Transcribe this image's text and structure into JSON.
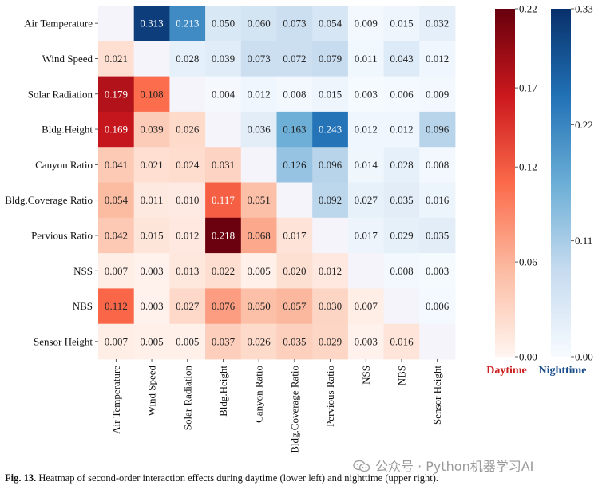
{
  "chart_data": {
    "type": "heatmap",
    "title": "",
    "row_labels": [
      "Air Temperature",
      "Wind Speed",
      "Solar Radiation",
      "Bldg.Height",
      "Canyon Ratio",
      "Bldg.Coverage Ratio",
      "Pervious Ratio",
      "NSS",
      "NBS",
      "Sensor Height"
    ],
    "col_labels": [
      "Air Temperature",
      "Wind Speed",
      "Solar Radiation",
      "Bldg.Height",
      "Canyon Ratio",
      "Bldg.Coverage Ratio",
      "Pervious Ratio",
      "NSS",
      "NBS",
      "Sensor Height"
    ],
    "values": [
      [
        null,
        0.313,
        0.213,
        0.05,
        0.06,
        0.073,
        0.054,
        0.009,
        0.015,
        0.032
      ],
      [
        0.021,
        null,
        0.028,
        0.039,
        0.073,
        0.072,
        0.079,
        0.011,
        0.043,
        0.012
      ],
      [
        0.179,
        0.108,
        null,
        0.004,
        0.012,
        0.008,
        0.015,
        0.003,
        0.006,
        0.009
      ],
      [
        0.169,
        0.039,
        0.026,
        null,
        0.036,
        0.163,
        0.243,
        0.012,
        0.012,
        0.096
      ],
      [
        0.041,
        0.021,
        0.024,
        0.031,
        null,
        0.126,
        0.096,
        0.014,
        0.028,
        0.008
      ],
      [
        0.054,
        0.011,
        0.01,
        0.117,
        0.051,
        null,
        0.092,
        0.027,
        0.035,
        0.016
      ],
      [
        0.042,
        0.015,
        0.012,
        0.218,
        0.068,
        0.017,
        null,
        0.017,
        0.029,
        0.035
      ],
      [
        0.007,
        0.003,
        0.013,
        0.022,
        0.005,
        0.02,
        0.012,
        null,
        0.008,
        0.003
      ],
      [
        0.112,
        0.003,
        0.027,
        0.076,
        0.05,
        0.057,
        0.03,
        0.007,
        null,
        0.006
      ],
      [
        0.007,
        0.005,
        0.005,
        0.037,
        0.026,
        0.035,
        0.029,
        0.003,
        0.016,
        null
      ]
    ],
    "value_labels": [
      [
        "",
        "0.313",
        "0.213",
        "0.050",
        "0.060",
        "0.073",
        "0.054",
        "0.009",
        "0.015",
        "0.032"
      ],
      [
        "0.021",
        "",
        "0.028",
        "0.039",
        "0.073",
        "0.072",
        "0.079",
        "0.011",
        "0.043",
        "0.012"
      ],
      [
        "0.179",
        "0.108",
        "",
        "0.004",
        "0.012",
        "0.008",
        "0.015",
        "0.003",
        "0.006",
        "0.009"
      ],
      [
        "0.169",
        "0.039",
        "0.026",
        "",
        "0.036",
        "0.163",
        "0.243",
        "0.012",
        "0.012",
        "0.096"
      ],
      [
        "0.041",
        "0.021",
        "0.024",
        "0.031",
        "",
        "0.126",
        "0.096",
        "0.014",
        "0.028",
        "0.008"
      ],
      [
        "0.054",
        "0.011",
        "0.010",
        "0.117",
        "0.051",
        "",
        "0.092",
        "0.027",
        "0.035",
        "0.016"
      ],
      [
        "0.042",
        "0.015",
        "0.012",
        "0.218",
        "0.068",
        "0.017",
        "",
        "0.017",
        "0.029",
        "0.035"
      ],
      [
        "0.007",
        "0.003",
        "0.013",
        "0.022",
        "0.005",
        "0.020",
        "0.012",
        "",
        "0.008",
        "0.003"
      ],
      [
        "0.112",
        "0.003",
        "0.027",
        "0.076",
        "0.050",
        "0.057",
        "0.030",
        "0.007",
        "",
        "0.006"
      ],
      [
        "0.007",
        "0.005",
        "0.005",
        "0.037",
        "0.026",
        "0.035",
        "0.029",
        "0.003",
        "0.016",
        ""
      ]
    ],
    "lower_triangle": "Daytime",
    "upper_triangle": "Nighttime",
    "colorbars": [
      {
        "name": "Daytime",
        "color": "#cc1f1f",
        "range": [
          0,
          0.22
        ],
        "ticks": [
          0.0,
          0.06,
          0.12,
          0.17,
          0.22
        ],
        "tick_labels": [
          "0.00",
          "0.06",
          "0.12",
          "0.17",
          "0.22"
        ],
        "cmap": [
          "#fff5f0",
          "#fcbba1",
          "#fb6a4a",
          "#cb181d",
          "#67000d"
        ]
      },
      {
        "name": "Nighttime",
        "color": "#1c4e8c",
        "range": [
          0,
          0.33
        ],
        "ticks": [
          0.0,
          0.11,
          0.22,
          0.33
        ],
        "tick_labels": [
          "0.00",
          "0.11",
          "0.22",
          "0.33"
        ],
        "cmap": [
          "#f7fbff",
          "#c6dbef",
          "#6baed6",
          "#2171b5",
          "#08306b"
        ]
      }
    ],
    "diagonal_color": "#f4f4fa"
  },
  "caption": {
    "label": "Fig. 13.",
    "text": " Heatmap of second-order interaction effects during daytime (lower left) and nighttime (upper right)."
  },
  "watermark": {
    "text": "公众号 · Python机器学习AI"
  }
}
